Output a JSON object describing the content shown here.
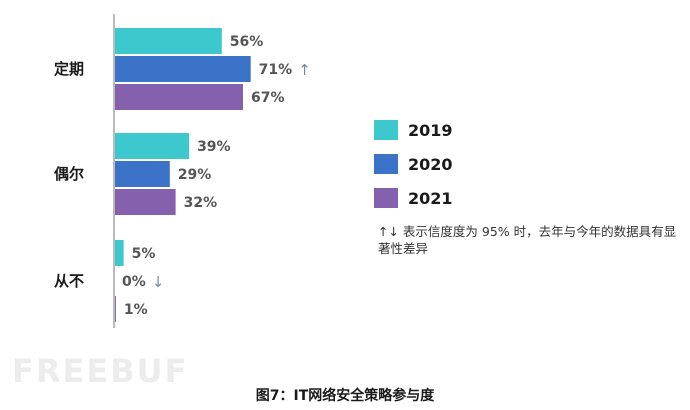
{
  "chart_data": {
    "type": "bar",
    "orientation": "horizontal",
    "categories": [
      "定期",
      "偶尔",
      "从不"
    ],
    "series": [
      {
        "name": "2019",
        "color": "#3cc8cc",
        "values": [
          56,
          39,
          5
        ]
      },
      {
        "name": "2020",
        "color": "#3a73c8",
        "values": [
          71,
          29,
          0
        ]
      },
      {
        "name": "2021",
        "color": "#8460ad",
        "values": [
          67,
          32,
          1
        ]
      }
    ],
    "value_suffix": "%",
    "xlim": [
      0,
      100
    ],
    "significance": [
      {
        "category": "定期",
        "series": "2020",
        "direction": "up",
        "symbol": "↑"
      },
      {
        "category": "从不",
        "series": "2020",
        "direction": "down",
        "symbol": "↓"
      }
    ],
    "legend_position": "right",
    "grid": false
  },
  "note": "↑↓ 表示信度度为 95% 时，去年与今年的数据具有显著性差异",
  "caption": "图7：IT网络安全策略参与度",
  "watermark": "FREEBUF"
}
